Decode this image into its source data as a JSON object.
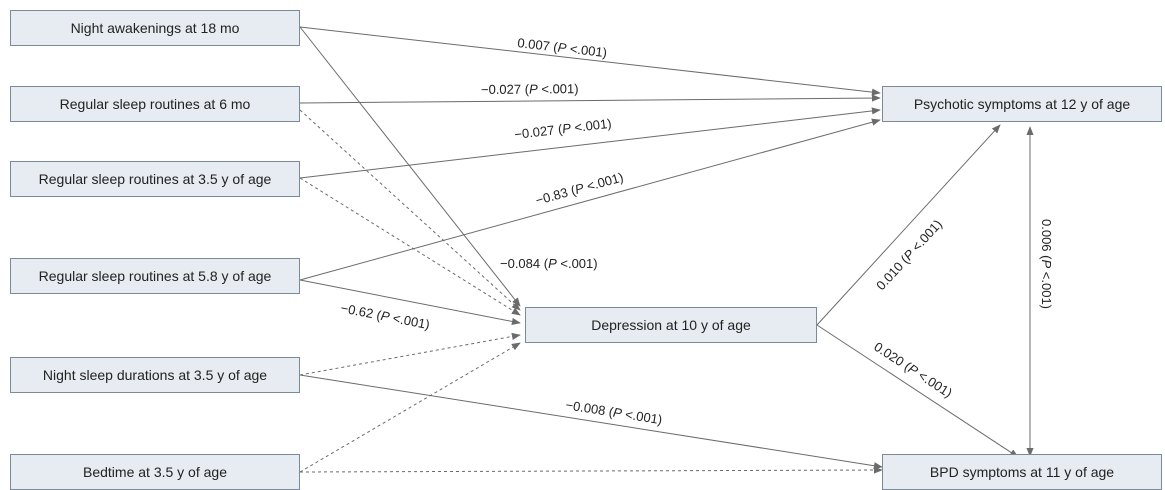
{
  "colors": {
    "node_fill": "#e6ecf1",
    "node_border": "#7a8a98",
    "edge": "#6b6b6b"
  },
  "nodes": {
    "night_awakenings_18": "Night awakenings at 18 mo",
    "routines_6mo": "Regular sleep routines at 6 mo",
    "routines_3_5y": "Regular sleep routines at 3.5 y of age",
    "routines_5_8y": "Regular sleep routines at 5.8 y of age",
    "night_sleep_3_5y": "Night sleep durations at 3.5 y of age",
    "bedtime_3_5y": "Bedtime at 3.5 y of age",
    "depression_10y": "Depression at 10 y of age",
    "psychotic_12y": "Psychotic symptoms at 12 y of age",
    "bpd_11y": "BPD symptoms at 11 y of age"
  },
  "edges": [
    {
      "id": "e1",
      "from": "night_awakenings_18",
      "to": "psychotic_12y",
      "coef": "0.007",
      "p": "P",
      "pval": " <.001)",
      "style": "solid"
    },
    {
      "id": "e2",
      "from": "routines_6mo",
      "to": "psychotic_12y",
      "coef": "−0.027",
      "p": "P",
      "pval": " <.001)",
      "style": "solid"
    },
    {
      "id": "e3",
      "from": "routines_3_5y",
      "to": "psychotic_12y",
      "coef": "−0.027",
      "p": "P",
      "pval": " <.001)",
      "style": "solid"
    },
    {
      "id": "e4",
      "from": "routines_5_8y",
      "to": "psychotic_12y",
      "coef": "−0.83",
      "p": "P",
      "pval": " <.001)",
      "style": "solid"
    },
    {
      "id": "e5",
      "from": "night_awakenings_18",
      "to": "depression_10y",
      "coef": "−0.084",
      "p": "P",
      "pval": " <.001)",
      "style": "solid"
    },
    {
      "id": "e6",
      "from": "routines_5_8y",
      "to": "depression_10y",
      "coef": "−0.62",
      "p": "P",
      "pval": " <.001)",
      "style": "solid"
    },
    {
      "id": "e7",
      "from": "depression_10y",
      "to": "psychotic_12y",
      "coef": "0.010",
      "p": "P",
      "pval": " <.001)",
      "style": "solid"
    },
    {
      "id": "e8",
      "from": "depression_10y",
      "to": "bpd_11y",
      "coef": "0.020",
      "p": "P",
      "pval": " <.001)",
      "style": "solid"
    },
    {
      "id": "e9",
      "from": "psychotic_12y",
      "to": "bpd_11y",
      "coef": "0.006",
      "p": "P",
      "pval": " <.001)",
      "style": "double-solid"
    },
    {
      "id": "e10",
      "from": "night_sleep_3_5y",
      "to": "bpd_11y",
      "coef": "−0.008",
      "p": "P",
      "pval": " <.001)",
      "style": "solid"
    },
    {
      "id": "e11",
      "from": "routines_6mo",
      "to": "depression_10y",
      "style": "dashed"
    },
    {
      "id": "e12",
      "from": "routines_3_5y",
      "to": "depression_10y",
      "style": "dashed"
    },
    {
      "id": "e13",
      "from": "night_sleep_3_5y",
      "to": "depression_10y",
      "style": "dashed"
    },
    {
      "id": "e14",
      "from": "bedtime_3_5y",
      "to": "depression_10y",
      "style": "dashed"
    },
    {
      "id": "e15",
      "from": "bedtime_3_5y",
      "to": "bpd_11y",
      "style": "dashed"
    }
  ]
}
